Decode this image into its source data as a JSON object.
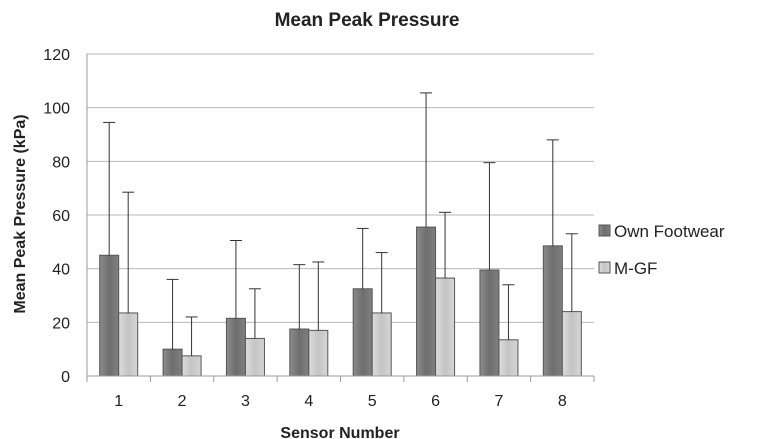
{
  "chart_data": {
    "type": "bar",
    "title": "Mean Peak Pressure",
    "xlabel": "Sensor Number",
    "ylabel": "Mean Peak Pressure (kPa)",
    "categories": [
      "1",
      "2",
      "3",
      "4",
      "5",
      "6",
      "7",
      "8"
    ],
    "ylim": [
      0,
      120
    ],
    "yticks": [
      0,
      20,
      40,
      60,
      80,
      100,
      120
    ],
    "grid": true,
    "legend_position": "right",
    "error_bars": "upper",
    "series": [
      {
        "name": "Own Footwear",
        "color": "#7a7a7a",
        "values": [
          45,
          10,
          21.5,
          17.5,
          32.5,
          55.5,
          39.5,
          48.5
        ],
        "error_upper": [
          94.5,
          36,
          50.5,
          41.5,
          55,
          105.5,
          79.5,
          88
        ]
      },
      {
        "name": "M-GF",
        "color": "#cfcfcf",
        "values": [
          23.5,
          7.5,
          14,
          17,
          23.5,
          36.5,
          13.5,
          24
        ],
        "error_upper": [
          68.5,
          22,
          32.5,
          42.5,
          46,
          61,
          34,
          53
        ]
      }
    ]
  }
}
